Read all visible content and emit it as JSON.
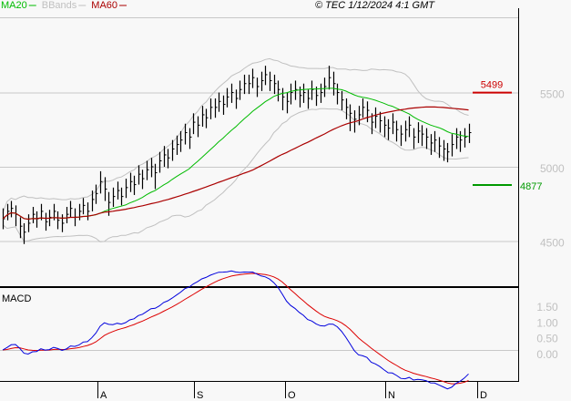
{
  "legend": {
    "ma20": {
      "label": "MA20",
      "color": "#00bb00"
    },
    "bbands": {
      "label": "BBands",
      "color": "#c0c0c0"
    },
    "ma60": {
      "label": "MA60",
      "color": "#aa0000"
    }
  },
  "copyright": "© TEC 1/12/2024 4:1 GMT",
  "macd_label": "MACD",
  "levels": {
    "resistance": {
      "value": 5499,
      "label": "5499",
      "color": "#cc0000"
    },
    "support": {
      "value": 4877,
      "label": "4877",
      "color": "#009900"
    }
  },
  "chart_data": [
    {
      "type": "ohlc-bar",
      "title": "",
      "y_ticks": [
        "5500",
        "5000",
        "4500"
      ],
      "y_tick_values": [
        5500,
        5000,
        4500
      ],
      "ylim": [
        4200,
        6000
      ],
      "x_ticks": [
        "A",
        "S",
        "O",
        "N",
        "D"
      ],
      "grid": true,
      "legend_placement": "top-left",
      "close": [
        4650,
        4700,
        4720,
        4680,
        4600,
        4560,
        4620,
        4680,
        4650,
        4700,
        4630,
        4660,
        4700,
        4640,
        4620,
        4680,
        4720,
        4660,
        4700,
        4740,
        4700,
        4780,
        4820,
        4900,
        4850,
        4760,
        4800,
        4840,
        4800,
        4860,
        4900,
        4880,
        4950,
        4920,
        4980,
        5000,
        4960,
        5040,
        5080,
        5060,
        5120,
        5150,
        5180,
        5230,
        5200,
        5300,
        5280,
        5350,
        5330,
        5400,
        5400,
        5440,
        5420,
        5470,
        5500,
        5460,
        5520,
        5560,
        5560,
        5600,
        5540,
        5580,
        5620,
        5580,
        5560,
        5520,
        5470,
        5440,
        5500,
        5520,
        5480,
        5500,
        5460,
        5520,
        5480,
        5500,
        5540,
        5600,
        5560,
        5500,
        5450,
        5400,
        5360,
        5320,
        5350,
        5400,
        5380,
        5300,
        5340,
        5310,
        5280,
        5260,
        5300,
        5250,
        5220,
        5250,
        5280,
        5200,
        5240,
        5220,
        5200,
        5160,
        5180,
        5140,
        5120,
        5100,
        5150,
        5200,
        5180,
        5200,
        5230
      ],
      "high": [
        4720,
        4750,
        4770,
        4740,
        4660,
        4620,
        4680,
        4730,
        4700,
        4750,
        4690,
        4710,
        4750,
        4700,
        4680,
        4730,
        4770,
        4720,
        4750,
        4790,
        4760,
        4840,
        4880,
        4970,
        4930,
        4830,
        4860,
        4900,
        4860,
        4920,
        4960,
        4940,
        5010,
        4980,
        5040,
        5060,
        5020,
        5100,
        5140,
        5120,
        5180,
        5210,
        5240,
        5290,
        5260,
        5360,
        5340,
        5410,
        5390,
        5460,
        5460,
        5500,
        5480,
        5530,
        5560,
        5520,
        5580,
        5620,
        5620,
        5660,
        5600,
        5640,
        5680,
        5640,
        5620,
        5580,
        5530,
        5500,
        5560,
        5580,
        5540,
        5560,
        5520,
        5580,
        5540,
        5560,
        5600,
        5680,
        5640,
        5560,
        5510,
        5460,
        5420,
        5380,
        5410,
        5460,
        5440,
        5360,
        5400,
        5370,
        5340,
        5320,
        5360,
        5310,
        5280,
        5310,
        5340,
        5260,
        5300,
        5280,
        5260,
        5220,
        5240,
        5200,
        5180,
        5160,
        5220,
        5260,
        5240,
        5260,
        5290
      ],
      "low": [
        4580,
        4640,
        4660,
        4600,
        4520,
        4480,
        4560,
        4620,
        4590,
        4640,
        4570,
        4600,
        4640,
        4580,
        4560,
        4620,
        4660,
        4600,
        4640,
        4680,
        4640,
        4700,
        4750,
        4820,
        4770,
        4670,
        4730,
        4780,
        4740,
        4790,
        4830,
        4810,
        4880,
        4850,
        4910,
        4930,
        4850,
        4960,
        5000,
        4990,
        5040,
        5080,
        5100,
        5150,
        5120,
        5220,
        5200,
        5270,
        5260,
        5320,
        5330,
        5370,
        5350,
        5400,
        5430,
        5390,
        5450,
        5490,
        5490,
        5530,
        5470,
        5510,
        5550,
        5510,
        5490,
        5440,
        5380,
        5360,
        5420,
        5450,
        5400,
        5430,
        5390,
        5450,
        5410,
        5430,
        5470,
        5520,
        5480,
        5420,
        5380,
        5320,
        5240,
        5230,
        5280,
        5330,
        5300,
        5220,
        5260,
        5230,
        5200,
        5180,
        5220,
        5170,
        5140,
        5170,
        5200,
        5120,
        5160,
        5140,
        5120,
        5080,
        5100,
        5060,
        5040,
        5030,
        5070,
        5120,
        5100,
        5130,
        5160
      ]
    },
    {
      "type": "line",
      "title": "MACD",
      "y_ticks": [
        "1.50",
        "1.00",
        "0.50",
        "0.00"
      ],
      "y_tick_values": [
        1.5,
        1.0,
        0.5,
        0.0
      ],
      "ylim": [
        -0.9,
        1.9
      ],
      "series_colors": {
        "macd": "#0000dd",
        "signal": "#dd0000"
      }
    }
  ]
}
